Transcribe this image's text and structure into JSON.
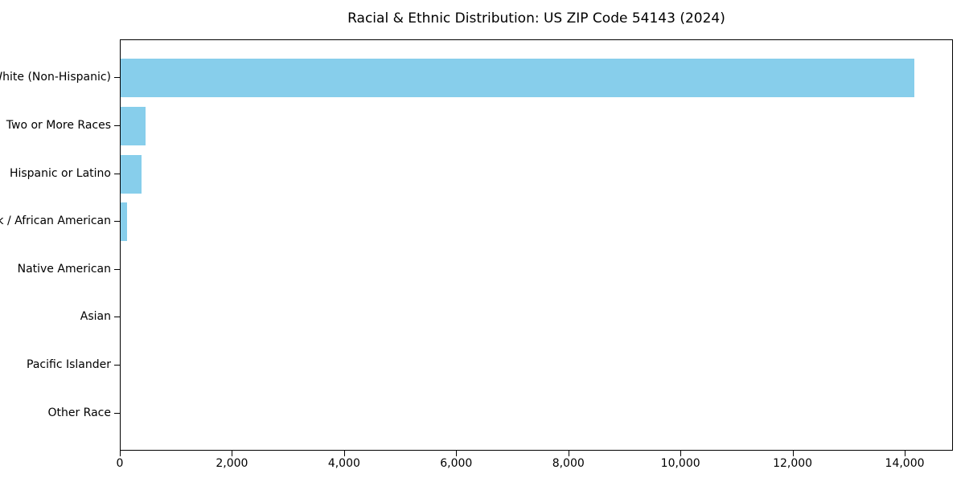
{
  "colors": {
    "bar": "#87CEEB",
    "axis": "#000000",
    "background": "#FFFFFF",
    "text": "#000000"
  },
  "chart_data": {
    "type": "bar",
    "orientation": "horizontal",
    "title": "Racial & Ethnic Distribution: US ZIP Code 54143 (2024)",
    "categories": [
      "White (Non-Hispanic)",
      "Two or More Races",
      "Hispanic or Latino",
      "Black / African American",
      "Native American",
      "Asian",
      "Pacific Islander",
      "Other Race"
    ],
    "values": [
      14150,
      450,
      370,
      110,
      0,
      0,
      0,
      0
    ],
    "xlabel": "",
    "ylabel": "",
    "xlim": [
      0,
      14860
    ],
    "x_ticks": [
      0,
      2000,
      4000,
      6000,
      8000,
      10000,
      12000,
      14000
    ],
    "x_tick_labels": [
      "0",
      "2,000",
      "4,000",
      "6,000",
      "8,000",
      "10,000",
      "12,000",
      "14,000"
    ],
    "grid": false,
    "legend": null
  }
}
